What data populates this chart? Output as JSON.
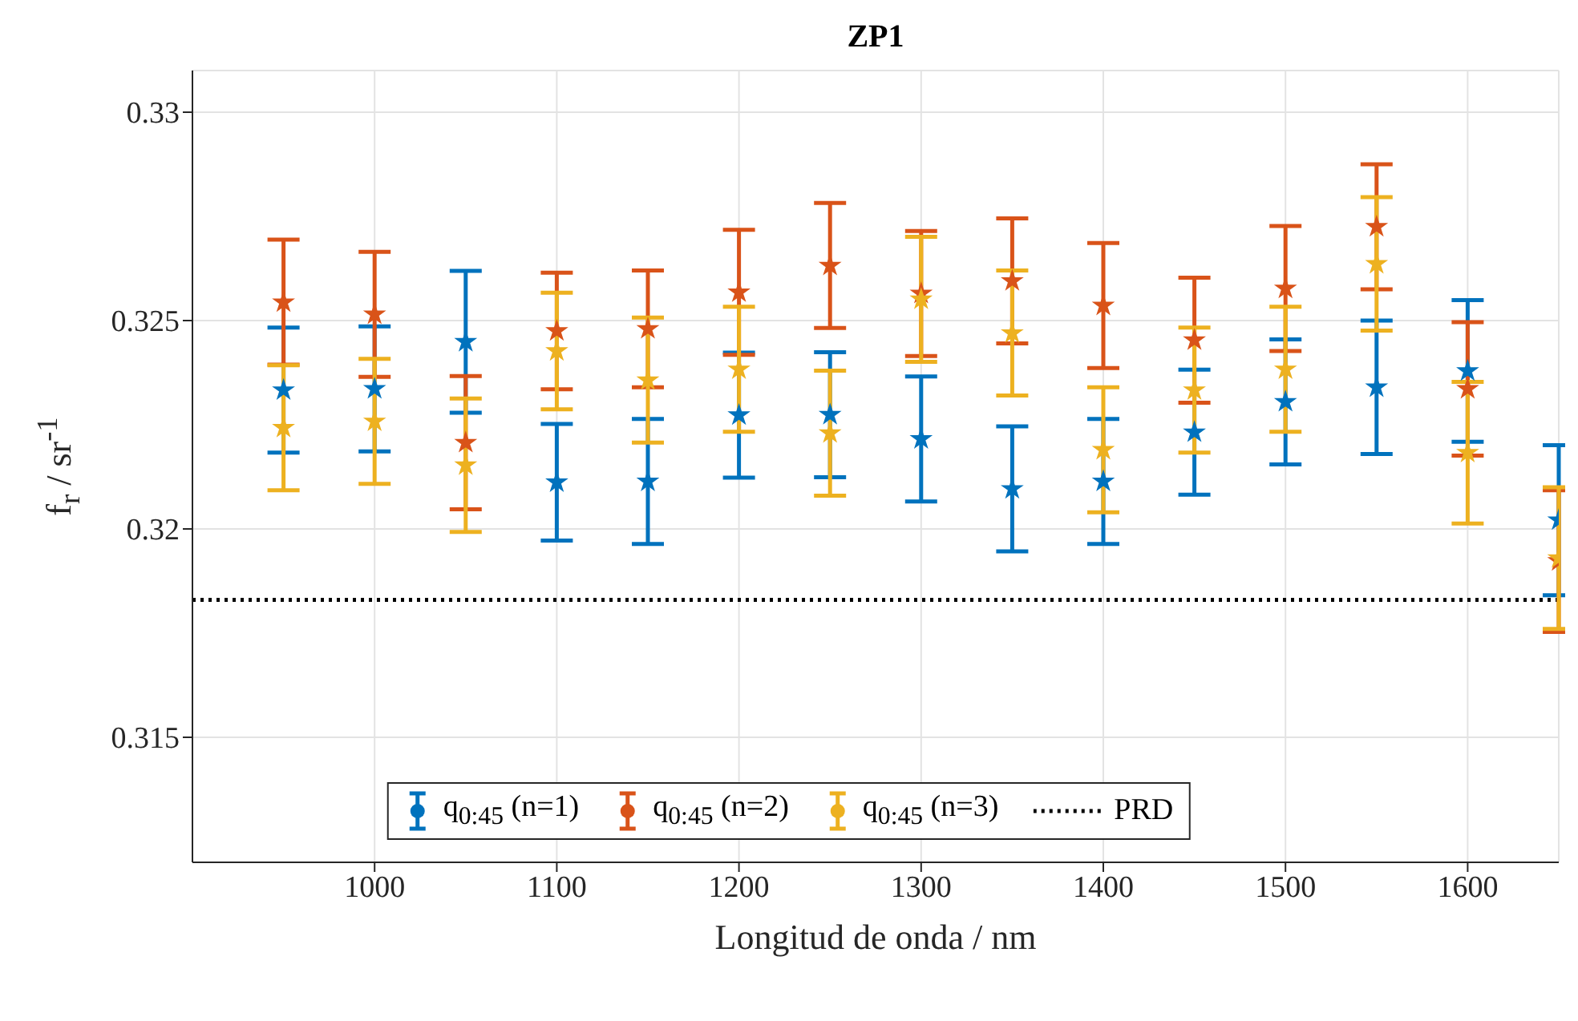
{
  "chart_data": {
    "type": "scatter",
    "title": "ZP1",
    "xlabel": "Longitud de onda / nm",
    "ylabel": "f$_{r}$ / sr$^{-1}$",
    "x": [
      950,
      1000,
      1050,
      1100,
      1150,
      1200,
      1250,
      1300,
      1350,
      1400,
      1450,
      1500,
      1550,
      1600,
      1650
    ],
    "series": [
      {
        "name": "q$_{0:45}$ (n=1)",
        "color": "#0072bd",
        "values": [
          0.32333,
          0.32336,
          0.32449,
          0.32112,
          0.32114,
          0.32273,
          0.32274,
          0.32216,
          0.32096,
          0.32114,
          0.32232,
          0.32305,
          0.3234,
          0.32379,
          0.32021
        ],
        "errors": [
          0.0015,
          0.0015,
          0.0017,
          0.0014,
          0.0015,
          0.0015,
          0.0015,
          0.0015,
          0.0015,
          0.0015,
          0.0015,
          0.0015,
          0.0016,
          0.0017,
          0.0018
        ]
      },
      {
        "name": "q$_{0:45}$ (n=2)",
        "color": "#d95319",
        "values": [
          0.32544,
          0.32515,
          0.32207,
          0.32475,
          0.3248,
          0.32568,
          0.32632,
          0.32565,
          0.32595,
          0.32536,
          0.32453,
          0.32577,
          0.32725,
          0.32336,
          0.31923
        ],
        "errors": [
          0.0015,
          0.0015,
          0.0016,
          0.0014,
          0.0014,
          0.0015,
          0.0015,
          0.0015,
          0.0015,
          0.0015,
          0.0015,
          0.0015,
          0.0015,
          0.0016,
          0.0017
        ]
      },
      {
        "name": "q$_{0:45}$ (n=3)",
        "color": "#edb120",
        "values": [
          0.32243,
          0.32258,
          0.32153,
          0.32427,
          0.32357,
          0.32383,
          0.3223,
          0.32551,
          0.3247,
          0.3219,
          0.32333,
          0.32383,
          0.32636,
          0.32183,
          0.3193
        ],
        "errors": [
          0.0015,
          0.0015,
          0.0016,
          0.0014,
          0.0015,
          0.0015,
          0.0015,
          0.0015,
          0.0015,
          0.0015,
          0.0015,
          0.0015,
          0.0016,
          0.0017,
          0.0017
        ]
      }
    ],
    "ref_lines": [
      {
        "axis": "y",
        "value": 0.3183,
        "label": "PRD",
        "color": "#000000",
        "line_style": "dotted"
      }
    ],
    "xlim": [
      900,
      1650
    ],
    "xticks": [
      1000,
      1100,
      1200,
      1300,
      1400,
      1500,
      1600
    ],
    "ylim": [
      0.312,
      0.331
    ],
    "yticks": [
      0.315,
      0.32,
      0.325,
      0.33
    ],
    "grid": true,
    "legend": "bottom",
    "marker": "star"
  }
}
